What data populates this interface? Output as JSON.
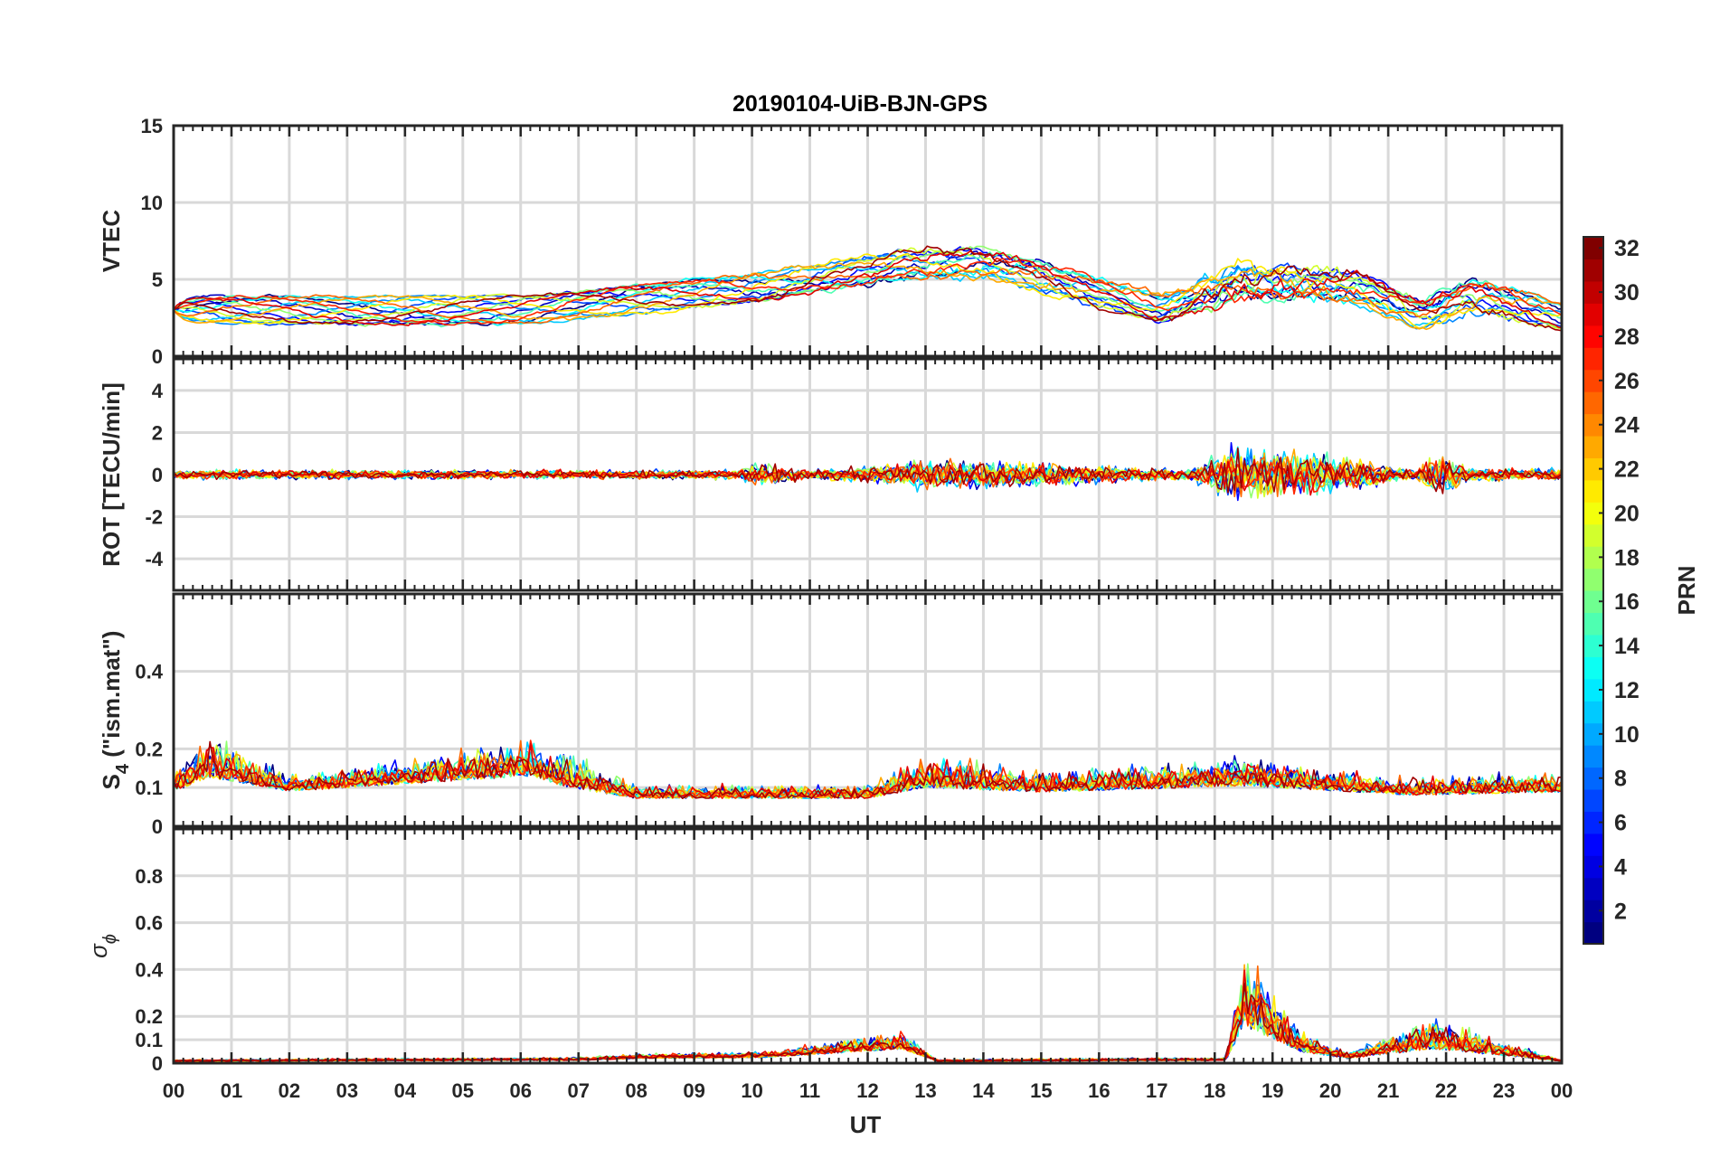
{
  "chart_data": [
    {
      "type": "line",
      "id": "vtec",
      "title": "20190104-UiB-BJN-GPS",
      "ylabel": "VTEC",
      "ylim": [
        0,
        15
      ],
      "yticks": [
        0,
        5,
        10,
        15
      ],
      "xlim": [
        0,
        24
      ],
      "grid": true,
      "activity": [
        [
          0,
          3.0,
          0.3
        ],
        [
          6,
          3.0,
          0.3
        ],
        [
          10,
          4.5,
          0.4
        ],
        [
          12.5,
          6.0,
          0.6
        ],
        [
          14,
          6.0,
          0.8
        ],
        [
          17,
          3.0,
          0.5
        ],
        [
          18.2,
          5.0,
          1.5
        ],
        [
          20.3,
          4.5,
          1.0
        ],
        [
          21.5,
          2.5,
          0.5
        ],
        [
          22.3,
          4.0,
          1.0
        ],
        [
          24,
          2.5,
          0.4
        ]
      ]
    },
    {
      "type": "line",
      "id": "rot",
      "ylabel": "ROT [TECU/min]",
      "ylim": [
        -5.5,
        5.5
      ],
      "yticks": [
        -4,
        -2,
        0,
        2,
        4
      ],
      "xlim": [
        0,
        24
      ],
      "grid": true,
      "activity": [
        [
          0,
          0,
          0.3
        ],
        [
          9.7,
          0,
          0.3
        ],
        [
          10,
          0,
          0.8
        ],
        [
          11,
          0,
          0.3
        ],
        [
          12.2,
          0,
          0.6
        ],
        [
          13,
          0,
          1.0
        ],
        [
          14.5,
          0,
          0.9
        ],
        [
          17.5,
          0,
          0.3
        ],
        [
          18.3,
          0,
          1.8
        ],
        [
          20.2,
          0,
          1.2
        ],
        [
          21.5,
          0,
          0.3
        ],
        [
          21.8,
          0,
          1.5
        ],
        [
          22.5,
          0,
          0.4
        ],
        [
          24,
          0,
          0.4
        ]
      ]
    },
    {
      "type": "line",
      "id": "s4",
      "ylabel_main": "S",
      "ylabel_sub": "4",
      "ylabel_tail": " (\"ism.mat\")",
      "ylim": [
        0,
        0.6
      ],
      "yticks": [
        0,
        0.1,
        0.2,
        0.4
      ],
      "ytick_labels": [
        "0",
        "0.1",
        "0.2",
        "0.4"
      ],
      "xlim": [
        0,
        24
      ],
      "grid": true,
      "activity": [
        [
          0,
          0.1,
          0.06
        ],
        [
          0.6,
          0.15,
          0.12
        ],
        [
          2,
          0.1,
          0.05
        ],
        [
          6.2,
          0.15,
          0.1
        ],
        [
          6.8,
          0.12,
          0.1
        ],
        [
          8,
          0.08,
          0.04
        ],
        [
          12,
          0.08,
          0.04
        ],
        [
          13,
          0.12,
          0.1
        ],
        [
          15,
          0.1,
          0.06
        ],
        [
          18.5,
          0.12,
          0.08
        ],
        [
          21.5,
          0.09,
          0.05
        ],
        [
          24,
          0.1,
          0.06
        ]
      ]
    },
    {
      "type": "line",
      "id": "sigma",
      "ylabel_main": "σ",
      "ylabel_sub": "ϕ",
      "ylim": [
        0,
        1
      ],
      "yticks": [
        0,
        0.1,
        0.2,
        0.4,
        0.6,
        0.8
      ],
      "ytick_labels": [
        "0",
        "0.1",
        "0.2",
        "0.4",
        "0.6",
        "0.8"
      ],
      "xlim": [
        0,
        24
      ],
      "grid": true,
      "activity": [
        [
          0,
          0.02,
          0.01
        ],
        [
          7,
          0.03,
          0.02
        ],
        [
          8,
          0.05,
          0.03
        ],
        [
          10.2,
          0.06,
          0.04
        ],
        [
          12.6,
          0.15,
          0.12
        ],
        [
          13.2,
          0.02,
          0.01
        ],
        [
          18.2,
          0.03,
          0.02
        ],
        [
          18.5,
          0.4,
          0.5
        ],
        [
          19.5,
          0.12,
          0.12
        ],
        [
          20.3,
          0.05,
          0.05
        ],
        [
          21.8,
          0.15,
          0.2
        ],
        [
          24,
          0.02,
          0.01
        ]
      ]
    }
  ],
  "xaxis": {
    "label": "UT",
    "ticks": [
      "00",
      "01",
      "02",
      "03",
      "04",
      "05",
      "06",
      "07",
      "08",
      "09",
      "10",
      "11",
      "12",
      "13",
      "14",
      "15",
      "16",
      "17",
      "18",
      "19",
      "20",
      "21",
      "22",
      "23",
      "00"
    ]
  },
  "colorbar": {
    "label": "PRN",
    "range": [
      1,
      32
    ],
    "ticks": [
      2,
      4,
      6,
      8,
      10,
      12,
      14,
      16,
      18,
      20,
      22,
      24,
      26,
      28,
      30,
      32
    ],
    "colormap": "jet"
  },
  "series": [
    1,
    3,
    5,
    7,
    9,
    11,
    13,
    15,
    17,
    19,
    21,
    23,
    25,
    27,
    29,
    31
  ]
}
